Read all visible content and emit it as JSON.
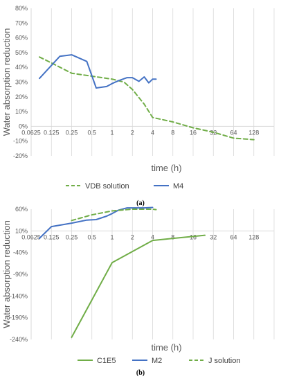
{
  "chart_data": [
    {
      "type": "line",
      "panel_label": "(a)",
      "xlabel": "time (h)",
      "ylabel": "Water absorption reduction",
      "x_scale": "log2",
      "x_ticks": [
        "0.0625",
        "0.125",
        "0.25",
        "0.5",
        "1",
        "2",
        "4",
        "8",
        "16",
        "32",
        "64",
        "128"
      ],
      "x_tick_values": [
        0.0625,
        0.125,
        0.25,
        0.5,
        1,
        2,
        4,
        8,
        16,
        32,
        64,
        128
      ],
      "xlim": [
        0.0625,
        256
      ],
      "ylim": [
        -20,
        80
      ],
      "y_ticks": [
        "-20%",
        "-10%",
        "0%",
        "10%",
        "20%",
        "30%",
        "40%",
        "50%",
        "60%",
        "70%",
        "80%"
      ],
      "y_tick_values": [
        -20,
        -10,
        0,
        10,
        20,
        30,
        40,
        50,
        60,
        70,
        80
      ],
      "legend_position": "bottom",
      "grid": "vertical",
      "series": [
        {
          "name": "VDB solution",
          "style": "dashed",
          "color": "#70ad47",
          "x": [
            0.083,
            0.125,
            0.25,
            0.5,
            1,
            1.5,
            2,
            3,
            4,
            8,
            16,
            32,
            64,
            128
          ],
          "y": [
            47,
            43,
            36,
            34,
            32,
            30,
            25,
            15,
            6,
            3,
            -1,
            -4,
            -8,
            -9
          ]
        },
        {
          "name": "M4",
          "style": "solid",
          "color": "#4472c4",
          "x": [
            0.083,
            0.167,
            0.25,
            0.42,
            0.58,
            0.83,
            1,
            1.25,
            1.67,
            2,
            2.5,
            3,
            3.5,
            4,
            4.5
          ],
          "y": [
            32.5,
            47.5,
            48.5,
            44,
            26,
            27,
            29,
            31,
            33,
            33,
            30.5,
            33.5,
            29.5,
            32,
            32
          ]
        }
      ]
    },
    {
      "type": "line",
      "panel_label": "(b)",
      "xlabel": "time (h)",
      "ylabel": "Water absorption reduction",
      "x_scale": "log2",
      "x_ticks": [
        "0.0625",
        "0.125",
        "0.25",
        "0.5",
        "1",
        "2",
        "4",
        "8",
        "16",
        "32",
        "64",
        "128"
      ],
      "x_tick_values": [
        0.0625,
        0.125,
        0.25,
        0.5,
        1,
        2,
        4,
        8,
        16,
        32,
        64,
        128
      ],
      "xlim": [
        0.0625,
        256
      ],
      "ylim": [
        -240,
        60
      ],
      "y_ticks": [
        "-240%",
        "-190%",
        "-140%",
        "-90%",
        "-40%",
        "10%",
        "60%"
      ],
      "y_tick_values": [
        -240,
        -190,
        -140,
        -90,
        -40,
        10,
        60
      ],
      "x_axis_at": 10,
      "legend_position": "bottom",
      "grid": "vertical",
      "series": [
        {
          "name": "C1E5",
          "style": "solid",
          "color": "#70ad47",
          "x": [
            0.25,
            1,
            4,
            24
          ],
          "y": [
            -235,
            -63,
            -12,
            0
          ]
        },
        {
          "name": "M2",
          "style": "solid",
          "color": "#4472c4",
          "x": [
            0.083,
            0.125,
            0.25,
            0.42,
            0.58,
            0.83,
            1,
            1.25,
            1.67,
            2,
            3,
            4
          ],
          "y": [
            -7,
            20,
            28,
            35,
            36,
            44,
            50,
            58,
            63,
            63,
            63,
            64
          ]
        },
        {
          "name": "J solution",
          "style": "dashed",
          "color": "#70ad47",
          "x": [
            0.25,
            0.5,
            1,
            2,
            4,
            4.5
          ],
          "y": [
            34,
            47,
            56,
            60,
            60,
            59
          ]
        }
      ]
    }
  ]
}
